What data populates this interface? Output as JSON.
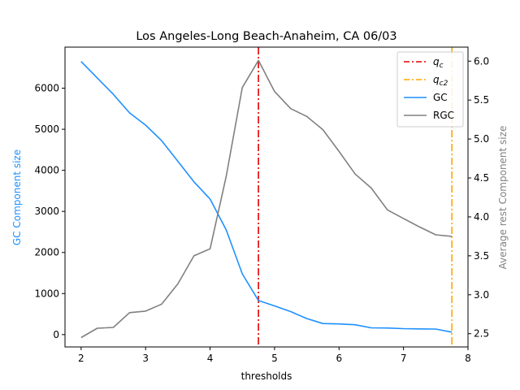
{
  "chart_data": {
    "type": "line",
    "title": "Los Angeles-Long Beach-Anaheim, CA 06/03",
    "xlabel": "thresholds",
    "ylabel_left": "GC Component size",
    "ylabel_right": "Average rest Component size",
    "xlim": [
      1.75,
      8.0
    ],
    "ylim_left": [
      -300,
      7000
    ],
    "ylim_right": [
      2.33,
      6.18
    ],
    "x_ticks": [
      2,
      3,
      4,
      5,
      6,
      7,
      8
    ],
    "y_ticks_left": [
      0,
      1000,
      2000,
      3000,
      4000,
      5000,
      6000
    ],
    "y_ticks_right": [
      2.5,
      3.0,
      3.5,
      4.0,
      4.5,
      5.0,
      5.5,
      6.0
    ],
    "x_tick_labels": [
      "2",
      "3",
      "4",
      "5",
      "6",
      "7",
      "8"
    ],
    "y_tick_labels_left": [
      "0",
      "1000",
      "2000",
      "3000",
      "4000",
      "5000",
      "6000"
    ],
    "y_tick_labels_right": [
      "2.5",
      "3.0",
      "3.5",
      "4.0",
      "4.5",
      "5.0",
      "5.5",
      "6.0"
    ],
    "x": [
      2.0,
      2.25,
      2.5,
      2.75,
      3.0,
      3.25,
      3.5,
      3.75,
      4.0,
      4.25,
      4.5,
      4.75,
      5.0,
      5.25,
      5.5,
      5.75,
      6.0,
      6.25,
      6.5,
      6.75,
      7.0,
      7.25,
      7.5,
      7.75
    ],
    "series": [
      {
        "name": "GC",
        "axis": "left",
        "color": "#1e90ff",
        "values": [
          6650,
          6250,
          5850,
          5400,
          5100,
          4720,
          4220,
          3720,
          3300,
          2550,
          1480,
          830,
          700,
          560,
          390,
          270,
          260,
          240,
          165,
          160,
          145,
          140,
          135,
          60
        ]
      },
      {
        "name": "RGC",
        "axis": "right",
        "color": "#808080",
        "values": [
          2.45,
          2.57,
          2.58,
          2.77,
          2.79,
          2.88,
          3.14,
          3.5,
          3.59,
          4.52,
          5.66,
          6.01,
          5.61,
          5.39,
          5.29,
          5.12,
          4.84,
          4.55,
          4.37,
          4.09,
          3.98,
          3.87,
          3.77,
          3.75
        ]
      }
    ],
    "vlines": [
      {
        "name": "q_c",
        "x": 4.75,
        "color": "#e00000",
        "style": "dashdot"
      },
      {
        "name": "q_c2",
        "x": 7.75,
        "color": "#ffa500",
        "style": "dashdot"
      }
    ],
    "legend": {
      "placement": "top-right",
      "entries": [
        {
          "label": "q",
          "sub": "c",
          "color": "#e00000",
          "style": "dashdot"
        },
        {
          "label": "q",
          "sub": "c2",
          "color": "#ffa500",
          "style": "dashdot"
        },
        {
          "label": "GC",
          "sub": "",
          "color": "#1e90ff",
          "style": "solid"
        },
        {
          "label": "RGC",
          "sub": "",
          "color": "#808080",
          "style": "solid"
        }
      ]
    },
    "grid": false,
    "colors": {
      "left_axis_label": "#1e90ff",
      "right_axis_label": "#808080"
    }
  }
}
